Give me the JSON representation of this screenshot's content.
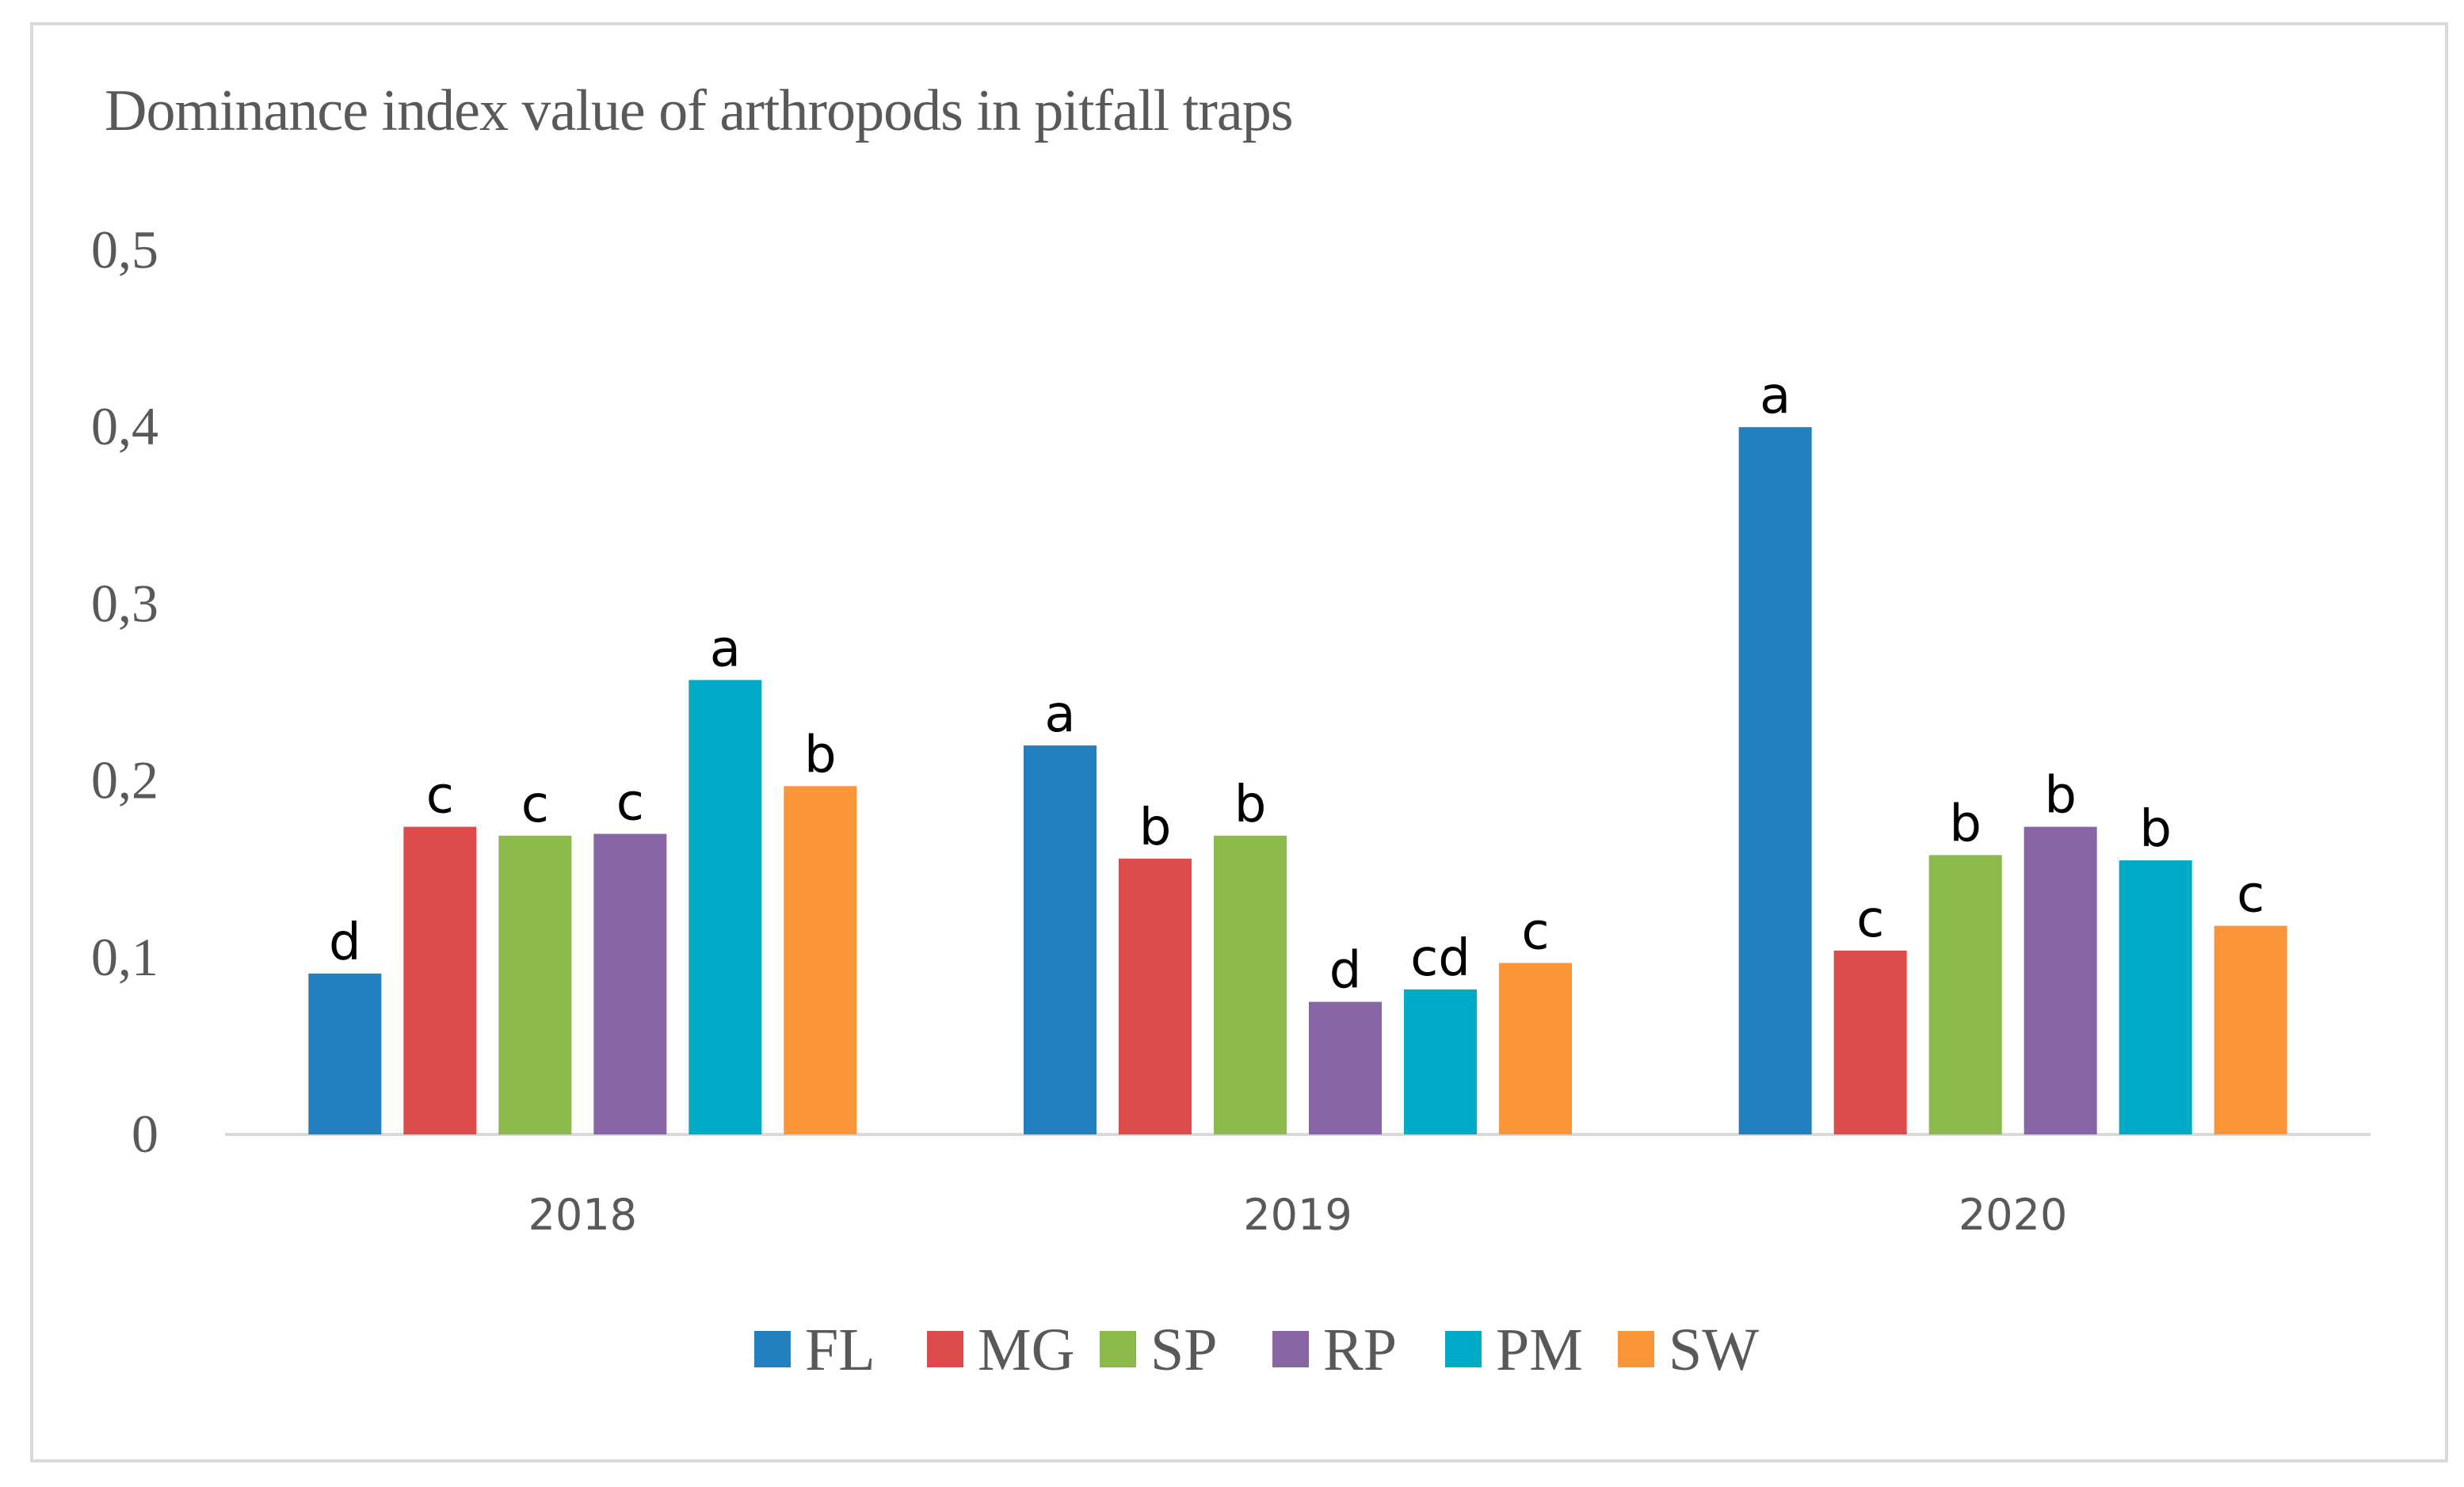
{
  "chart_data": {
    "type": "bar",
    "title": "Dominance index value of arthropods in pitfall traps",
    "xlabel": "",
    "ylabel": "",
    "ylim": [
      0,
      0.5
    ],
    "yticks": [
      "0",
      "0,1",
      "0,2",
      "0,3",
      "0,4",
      "0,5"
    ],
    "categories": [
      "2018",
      "2019",
      "2020"
    ],
    "legend_position": "bottom",
    "series": [
      {
        "name": "FL",
        "color": "#2280c0",
        "values": [
          0.091,
          0.22,
          0.4
        ],
        "labels": [
          "d",
          "a",
          "a"
        ]
      },
      {
        "name": "MG",
        "color": "#dc4c4c",
        "values": [
          0.174,
          0.156,
          0.104
        ],
        "labels": [
          "c",
          "b",
          "c"
        ]
      },
      {
        "name": "SP",
        "color": "#8cb94b",
        "values": [
          0.169,
          0.169,
          0.158
        ],
        "labels": [
          "c",
          "b",
          "b"
        ]
      },
      {
        "name": "RP",
        "color": "#8865a5",
        "values": [
          0.17,
          0.075,
          0.174
        ],
        "labels": [
          "c",
          "d",
          "b"
        ]
      },
      {
        "name": "PM",
        "color": "#00abc8",
        "values": [
          0.257,
          0.082,
          0.155
        ],
        "labels": [
          "a",
          "cd",
          "b"
        ]
      },
      {
        "name": "SW",
        "color": "#fb9539",
        "values": [
          0.197,
          0.097,
          0.118
        ],
        "labels": [
          "b",
          "c",
          "c"
        ]
      }
    ]
  }
}
